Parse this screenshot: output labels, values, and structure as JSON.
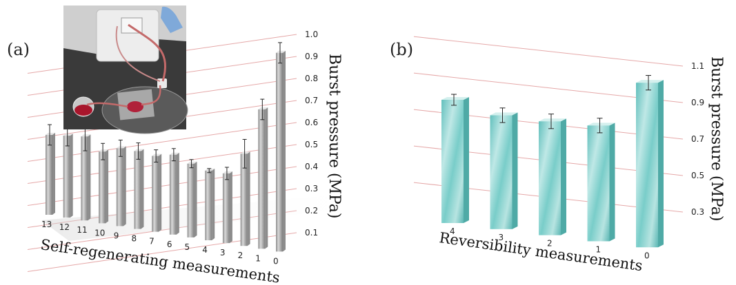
{
  "panels": {
    "a": {
      "label": "(a)"
    },
    "b": {
      "label": "(b)"
    }
  },
  "inset": {
    "icon": "experimental-setup-photo-icon"
  },
  "colors": {
    "grid": "#e5a7a7",
    "bar_a": "#a6a6a6",
    "bar_b": "#8fd3cf",
    "text": "#111111"
  },
  "chart_data": [
    {
      "type": "bar",
      "panel": "(a)",
      "xlabel": "Self-regenerating measurements",
      "ylabel": "Burst pressure (MPa)",
      "categories": [
        "13",
        "12",
        "11",
        "10",
        "9",
        "8",
        "7",
        "6",
        "5",
        "4",
        "3",
        "2",
        "1",
        "0"
      ],
      "values": [
        0.39,
        0.4,
        0.41,
        0.35,
        0.38,
        0.38,
        0.37,
        0.39,
        0.36,
        0.34,
        0.34,
        0.45,
        0.68,
        0.97
      ],
      "errors": [
        0.05,
        0.05,
        0.07,
        0.04,
        0.04,
        0.04,
        0.03,
        0.03,
        0.02,
        0.01,
        0.03,
        0.07,
        0.05,
        0.05
      ],
      "yticks": [
        "0.1",
        "0.2",
        "0.3",
        "0.4",
        "0.5",
        "0.6",
        "0.7",
        "0.8",
        "0.9",
        "1.0"
      ],
      "ylim": [
        0.0,
        1.0
      ],
      "grid": true,
      "3d": true
    },
    {
      "type": "bar",
      "panel": "(b)",
      "xlabel": "Reversibility measurements",
      "ylabel": "Burst pressure (MPa)",
      "categories": [
        "4",
        "3",
        "2",
        "1",
        "0"
      ],
      "values": [
        0.79,
        0.74,
        0.74,
        0.75,
        1.01
      ],
      "errors": [
        0.03,
        0.04,
        0.04,
        0.04,
        0.04
      ],
      "yticks": [
        "0.3",
        "0.5",
        "0.7",
        "0.9",
        "1.1"
      ],
      "ylim": [
        0.2,
        1.1
      ],
      "grid": true,
      "3d": true
    }
  ]
}
